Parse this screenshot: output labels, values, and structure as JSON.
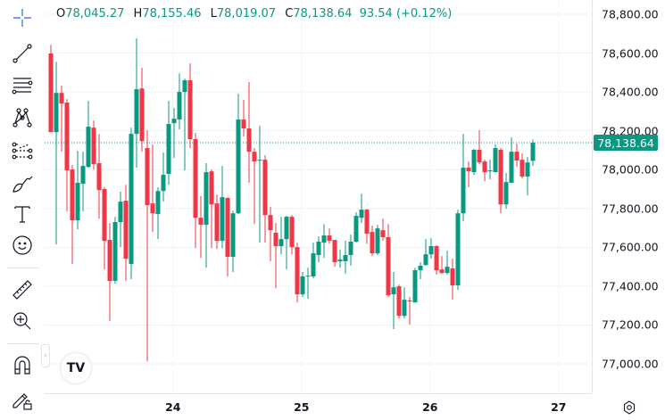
{
  "legend": {
    "open_label": "O",
    "open": "78,045.27",
    "high_label": "H",
    "high": "78,155.46",
    "low_label": "L",
    "low": "78,019.07",
    "close_label": "C",
    "close": "78,138.64",
    "change": "93.54 (+0.12%)"
  },
  "toolbar": {
    "tools": [
      "crosshair-icon",
      "trend-line-icon",
      "fib-retracement-icon",
      "pattern-icon",
      "prediction-icon",
      "brush-icon",
      "text-icon",
      "emoji-icon",
      "ruler-icon",
      "zoom-in-icon",
      "magnet-icon",
      "lock-drawings-icon"
    ]
  },
  "logo": "TV",
  "collapse_glyph": "‹",
  "current_price": "78,138.64",
  "colors": {
    "up": "#089981",
    "down": "#f23645",
    "price_line": "#089981"
  },
  "chart_data": {
    "type": "candlestick",
    "interval": "1 hour",
    "ylim": [
      76900,
      78880
    ],
    "grid": true,
    "y_ticks": [
      "78,800.00",
      "78,600.00",
      "78,400.00",
      "78,200.00",
      "78,000.00",
      "77,800.00",
      "77,600.00",
      "77,400.00",
      "77,200.00",
      "77,000.00"
    ],
    "y_tick_values": [
      78800,
      78600,
      78400,
      78200,
      78000,
      77800,
      77600,
      77400,
      77200,
      77000
    ],
    "x_ticks": [
      "24",
      "25",
      "26",
      "27"
    ],
    "x_tick_candle_index": [
      22.8,
      46.8,
      70.8,
      94.8
    ],
    "last_price": 78138.64,
    "ohlc": [
      [
        78598,
        78643,
        78193,
        78193
      ],
      [
        78193,
        78556,
        77615,
        78395
      ],
      [
        78395,
        78432,
        78092,
        78340
      ],
      [
        78345,
        78363,
        77785,
        77996
      ],
      [
        78001,
        78024,
        77514,
        77739
      ],
      [
        77739,
        78097,
        77693,
        77932
      ],
      [
        77927,
        78092,
        77785,
        78019
      ],
      [
        78014,
        78354,
        78010,
        78221
      ],
      [
        78216,
        78253,
        78001,
        78028
      ],
      [
        78033,
        78184,
        77748,
        77895
      ],
      [
        77900,
        77909,
        77486,
        77633
      ],
      [
        77638,
        77725,
        77220,
        77427
      ],
      [
        77427,
        77757,
        77413,
        77730
      ],
      [
        77730,
        77886,
        77601,
        77835
      ],
      [
        77840,
        77922,
        77427,
        77541
      ],
      [
        77514,
        78216,
        77436,
        78184
      ],
      [
        78184,
        78676,
        78010,
        78414
      ],
      [
        78418,
        78524,
        78092,
        78147
      ],
      [
        78111,
        78203,
        77013,
        77817
      ],
      [
        77826,
        78129,
        77679,
        77775
      ],
      [
        77771,
        77909,
        77642,
        77890
      ],
      [
        77890,
        78088,
        77835,
        77973
      ],
      [
        77978,
        78354,
        77922,
        78235
      ],
      [
        78239,
        78317,
        78060,
        78262
      ],
      [
        78258,
        78496,
        78207,
        78400
      ],
      [
        78400,
        78469,
        77996,
        78460
      ],
      [
        78460,
        78547,
        78111,
        78157
      ],
      [
        78157,
        78189,
        77596,
        77752
      ],
      [
        77752,
        77863,
        77546,
        77716
      ],
      [
        77716,
        78033,
        77495,
        77987
      ],
      [
        77991,
        78001,
        77596,
        77821
      ],
      [
        77826,
        77872,
        77592,
        77633
      ],
      [
        77633,
        78019,
        77596,
        77858
      ],
      [
        77854,
        77858,
        77450,
        77551
      ],
      [
        77551,
        77789,
        77473,
        77775
      ],
      [
        77775,
        78391,
        77771,
        78258
      ],
      [
        78258,
        78359,
        78170,
        78212
      ],
      [
        78212,
        78451,
        77932,
        78092
      ],
      [
        78092,
        78111,
        77720,
        78042
      ],
      [
        78047,
        78226,
        77624,
        78051
      ],
      [
        78051,
        78074,
        77624,
        77766
      ],
      [
        77766,
        77808,
        77528,
        77688
      ],
      [
        77675,
        77725,
        77390,
        77606
      ],
      [
        77606,
        77757,
        77564,
        77642
      ],
      [
        77642,
        77762,
        77486,
        77757
      ],
      [
        77757,
        77766,
        77564,
        77601
      ],
      [
        77601,
        77624,
        77316,
        77358
      ],
      [
        77358,
        77473,
        77344,
        77450
      ],
      [
        77450,
        77495,
        77335,
        77454
      ],
      [
        77450,
        77624,
        77440,
        77569
      ],
      [
        77560,
        77656,
        77523,
        77629
      ],
      [
        77624,
        77720,
        77546,
        77661
      ],
      [
        77661,
        77697,
        77619,
        77633
      ],
      [
        77638,
        77638,
        77500,
        77523
      ],
      [
        77528,
        77587,
        77495,
        77537
      ],
      [
        77528,
        77633,
        77463,
        77560
      ],
      [
        77560,
        77665,
        77505,
        77629
      ],
      [
        77629,
        77780,
        77624,
        77762
      ],
      [
        77752,
        77876,
        77725,
        77794
      ],
      [
        77794,
        77798,
        77619,
        77670
      ],
      [
        77679,
        77711,
        77555,
        77569
      ],
      [
        77569,
        77716,
        77560,
        77697
      ],
      [
        77688,
        77748,
        77633,
        77652
      ],
      [
        77652,
        77720,
        77344,
        77353
      ],
      [
        77358,
        77473,
        77179,
        77394
      ],
      [
        77399,
        77408,
        77234,
        77247
      ],
      [
        77247,
        77394,
        77234,
        77330
      ],
      [
        77326,
        77344,
        77202,
        77321
      ],
      [
        77316,
        77495,
        77316,
        77482
      ],
      [
        77482,
        77523,
        77436,
        77505
      ],
      [
        77509,
        77642,
        77505,
        77564
      ],
      [
        77564,
        77647,
        77541,
        77606
      ],
      [
        77606,
        77610,
        77459,
        77482
      ],
      [
        77486,
        77555,
        77463,
        77468
      ],
      [
        77468,
        77583,
        77459,
        77500
      ],
      [
        77491,
        77541,
        77330,
        77404
      ],
      [
        77404,
        77794,
        77381,
        77775
      ],
      [
        77775,
        78184,
        77734,
        78010
      ],
      [
        78010,
        78042,
        77909,
        77991
      ],
      [
        77987,
        78106,
        77973,
        78102
      ],
      [
        78102,
        78203,
        78028,
        78037
      ],
      [
        78042,
        78051,
        77941,
        77987
      ],
      [
        77991,
        78051,
        77950,
        77996
      ],
      [
        77987,
        78129,
        77987,
        78111
      ],
      [
        78102,
        78111,
        77775,
        77821
      ],
      [
        77821,
        77982,
        77798,
        77936
      ],
      [
        77932,
        78166,
        77932,
        78092
      ],
      [
        78092,
        78134,
        78014,
        78047
      ],
      [
        78051,
        78083,
        77955,
        77964
      ],
      [
        77964,
        78065,
        77867,
        78037
      ],
      [
        78045.27,
        78155.46,
        78019.07,
        78138.64
      ]
    ]
  }
}
